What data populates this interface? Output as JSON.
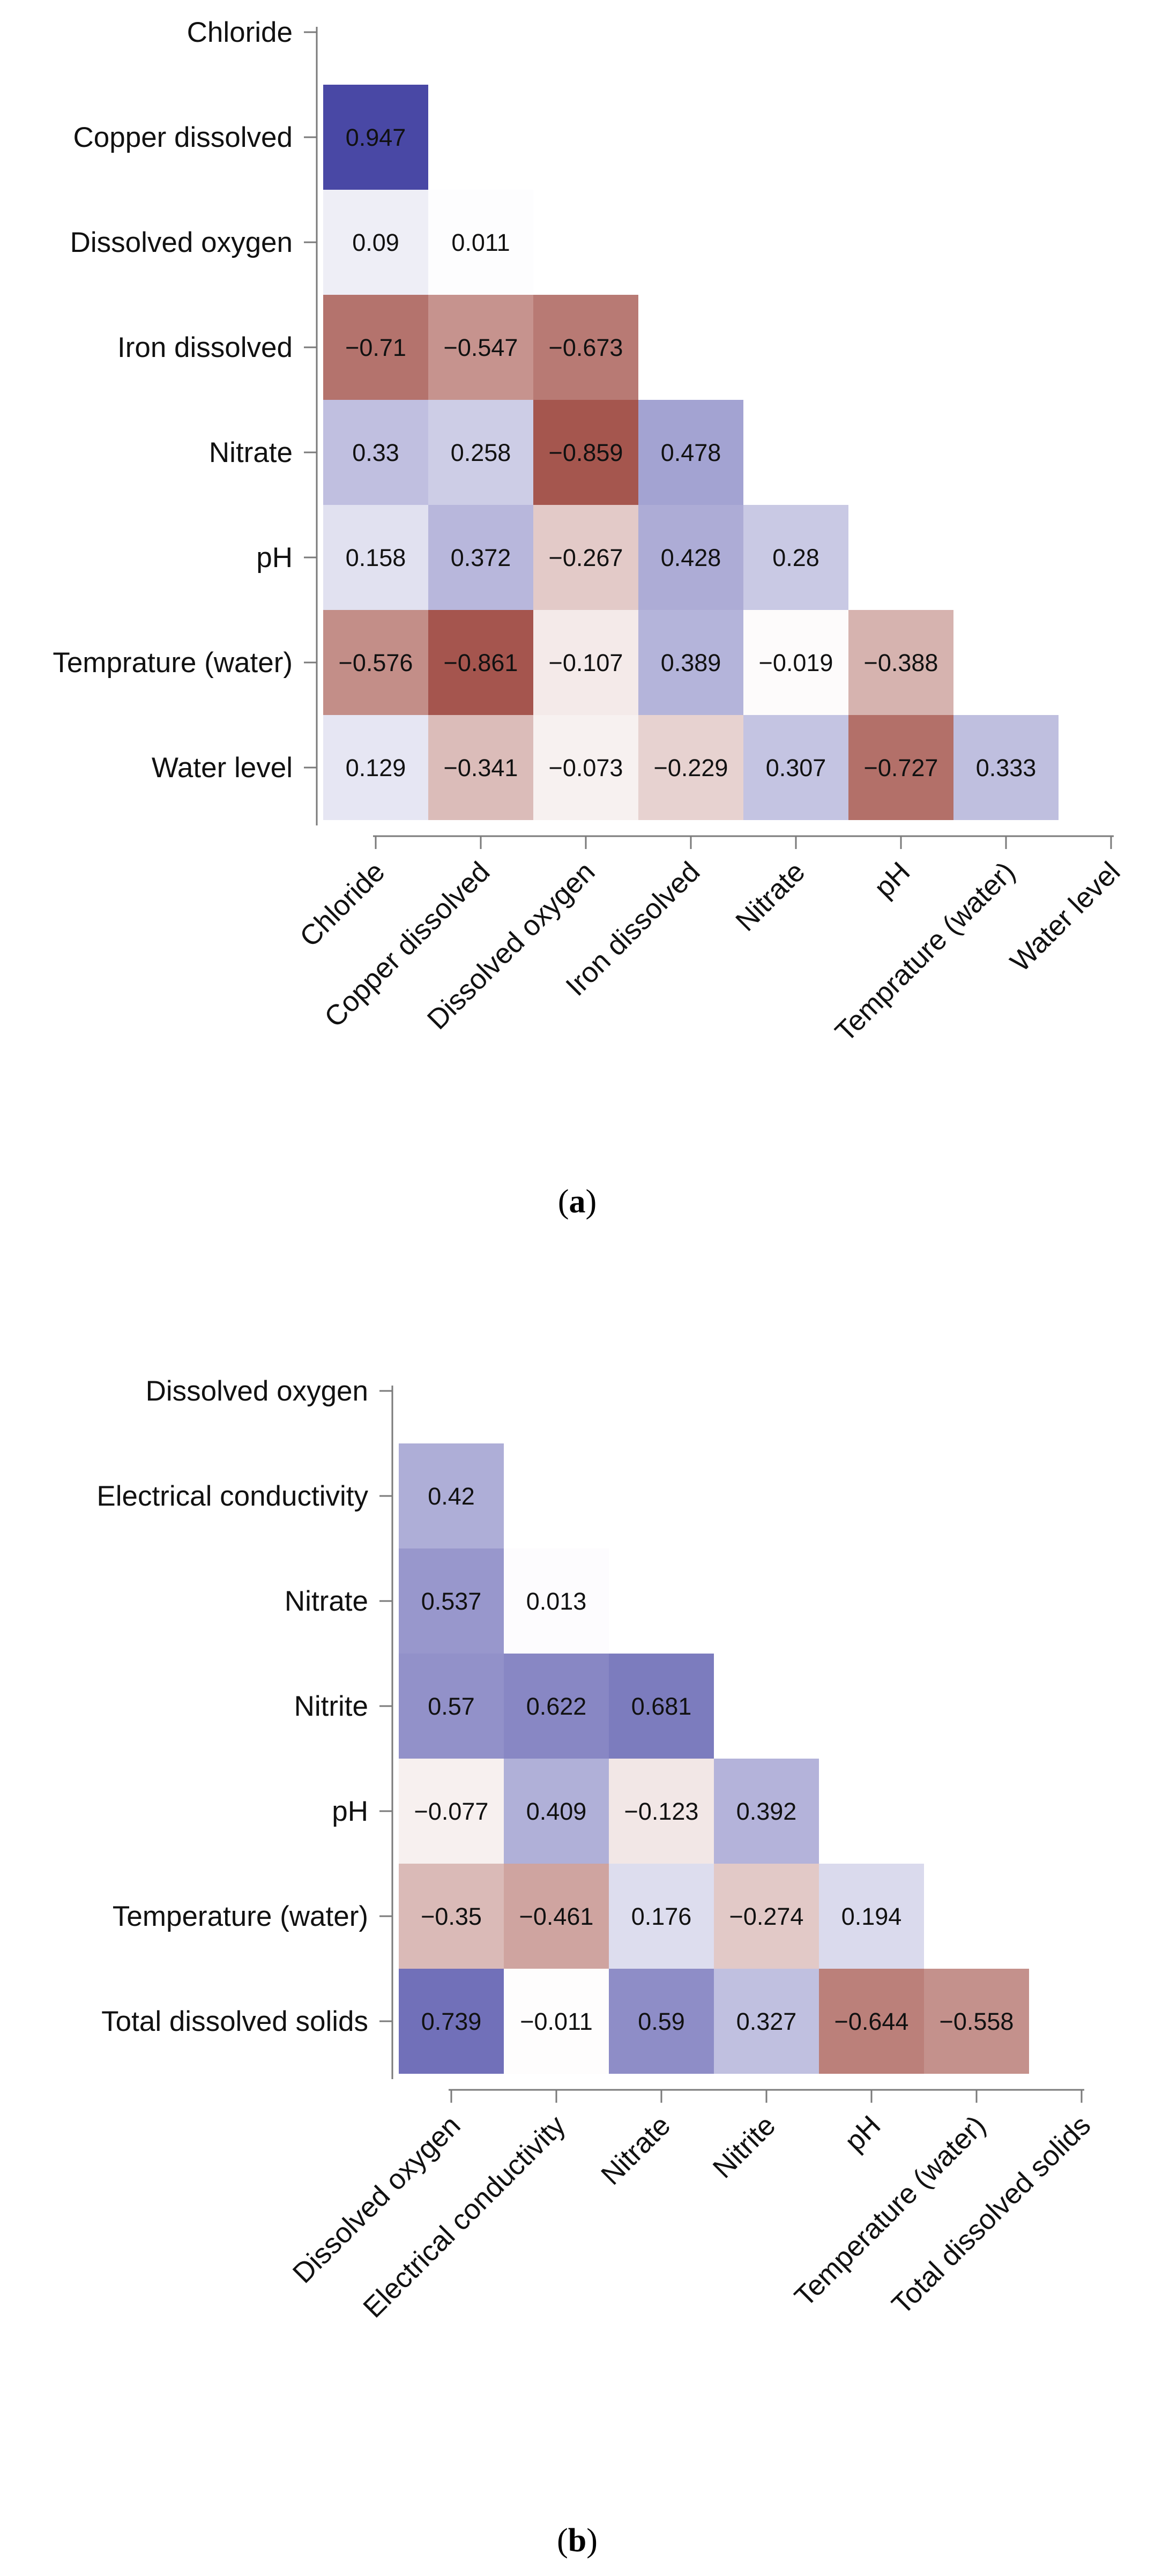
{
  "colors": {
    "positive": "#3f3ea0",
    "negative": "#963a31",
    "neutral": "#ffffff",
    "text": "#111111",
    "axis": "#7a7a7a"
  },
  "chart_data": [
    {
      "type": "heatmap",
      "panel_label": "a",
      "title": "",
      "value_range": [
        -1,
        1
      ],
      "variables": [
        "Chloride",
        "Copper dissolved",
        "Dissolved oxygen",
        "Iron dissolved",
        "Nitrate",
        "pH",
        "Temprature (water)",
        "Water level"
      ],
      "rows": [
        [],
        [
          0.947
        ],
        [
          0.09,
          0.011
        ],
        [
          -0.71,
          -0.547,
          -0.673
        ],
        [
          0.33,
          0.258,
          -0.859,
          0.478
        ],
        [
          0.158,
          0.372,
          -0.267,
          0.428,
          0.28
        ],
        [
          -0.576,
          -0.861,
          -0.107,
          0.389,
          -0.019,
          -0.388
        ],
        [
          0.129,
          -0.341,
          -0.073,
          -0.229,
          0.307,
          -0.727,
          0.333
        ]
      ],
      "labels": [
        [],
        [
          "0.947"
        ],
        [
          "0.09",
          "0.011"
        ],
        [
          "−0.71",
          "−0.547",
          "−0.673"
        ],
        [
          "0.33",
          "0.258",
          "−0.859",
          "0.478"
        ],
        [
          "0.158",
          "0.372",
          "−0.267",
          "0.428",
          "0.28"
        ],
        [
          "−0.576",
          "−0.861",
          "−0.107",
          "0.389",
          "−0.019",
          "−0.388"
        ],
        [
          "0.129",
          "−0.341",
          "−0.073",
          "−0.229",
          "0.307",
          "−0.727",
          "0.333"
        ]
      ]
    },
    {
      "type": "heatmap",
      "panel_label": "b",
      "title": "",
      "value_range": [
        -1,
        1
      ],
      "variables": [
        "Dissolved oxygen",
        "Electrical conductivity",
        "Nitrate",
        "Nitrite",
        "pH",
        "Temperature (water)",
        "Total dissolved solids"
      ],
      "rows": [
        [],
        [
          0.42
        ],
        [
          0.537,
          0.013
        ],
        [
          0.57,
          0.622,
          0.681
        ],
        [
          -0.077,
          0.409,
          -0.123,
          0.392
        ],
        [
          -0.35,
          -0.461,
          0.176,
          -0.274,
          0.194
        ],
        [
          0.739,
          -0.011,
          0.59,
          0.327,
          -0.644,
          -0.558
        ]
      ],
      "labels": [
        [],
        [
          "0.42"
        ],
        [
          "0.537",
          "0.013"
        ],
        [
          "0.57",
          "0.622",
          "0.681"
        ],
        [
          "−0.077",
          "0.409",
          "−0.123",
          "0.392"
        ],
        [
          "−0.35",
          "−0.461",
          "0.176",
          "−0.274",
          "0.194"
        ],
        [
          "0.739",
          "−0.011",
          "0.59",
          "0.327",
          "−0.644",
          "−0.558"
        ]
      ]
    }
  ]
}
